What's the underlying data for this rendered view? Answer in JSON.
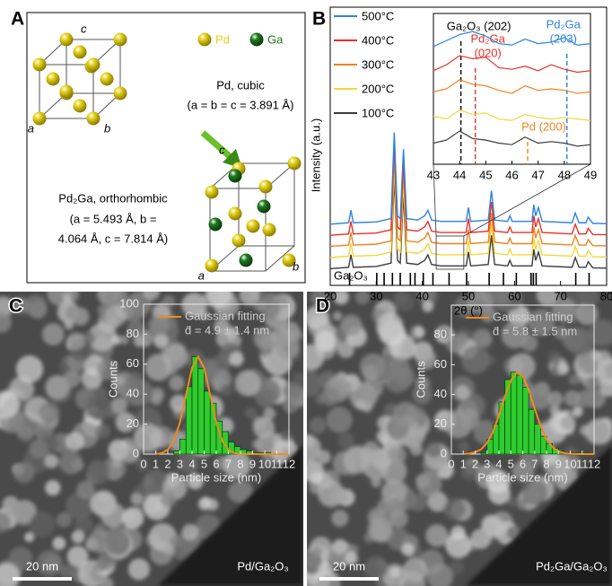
{
  "panel_labels": [
    "A",
    "B",
    "C",
    "D"
  ],
  "structures": {
    "legend": [
      {
        "name": "Pd",
        "color": "#e6d21a"
      },
      {
        "name": "Ga",
        "color": "#1f7a1f"
      }
    ],
    "pd": {
      "axes": [
        "c",
        "a",
        "b"
      ],
      "name": "Pd, cubic",
      "lattice": [
        "(a = b = c = 3.891 Å)"
      ]
    },
    "pd2ga": {
      "axes": [
        "c",
        "a",
        "b"
      ],
      "name": "Pd₂Ga, orthorhombic",
      "lattice": [
        "(a = 5.493 Å, b =",
        "4.064 Å, c = 7.814 Å)"
      ]
    }
  },
  "chart_data": [
    {
      "type": "line",
      "x_label": "2θ (°)",
      "y_label": "Intensity (a.u.)",
      "xlim": [
        20,
        80
      ],
      "xticks": [
        20,
        30,
        40,
        50,
        60,
        70,
        80
      ],
      "ylim": [
        0,
        100
      ],
      "x": [
        20,
        24,
        24.5,
        25,
        30,
        33.2,
        33.9,
        34.6,
        35.2,
        35.9,
        36.6,
        39,
        40.5,
        41.2,
        42,
        44,
        46,
        49.5,
        50,
        50.5,
        54.3,
        55,
        55.7,
        58.5,
        59,
        59.5,
        63.8,
        64.2,
        64.6,
        65.2,
        66,
        72.5,
        73.2,
        74,
        75.5,
        76,
        77,
        80
      ],
      "series": [
        {
          "name": "500°C",
          "color": "#2b83e0",
          "values": [
            22,
            22.5,
            27,
            22.5,
            22.8,
            24,
            55,
            25,
            24,
            49,
            24,
            23.5,
            25,
            27,
            23.5,
            23,
            23,
            23,
            28,
            23,
            23.5,
            34,
            23.5,
            23,
            25,
            23,
            23,
            29,
            25,
            28,
            23,
            22.5,
            26,
            22.5,
            22.5,
            24.5,
            22.3,
            22.2
          ]
        },
        {
          "name": "400°C",
          "color": "#e8302a",
          "values": [
            18,
            18.5,
            23,
            18.5,
            18.8,
            20,
            51,
            21,
            20,
            45,
            20,
            19.5,
            21,
            23,
            19.5,
            19,
            19,
            19,
            24,
            19,
            19.5,
            30,
            19.5,
            19,
            21,
            19,
            19,
            25,
            21,
            24,
            19,
            18.5,
            22,
            18.5,
            18.5,
            20.5,
            18.3,
            18.2
          ]
        },
        {
          "name": "300°C",
          "color": "#f0821e",
          "values": [
            14,
            14.5,
            19,
            14.5,
            14.8,
            16,
            47,
            17,
            16,
            41,
            16,
            15.5,
            17,
            19,
            15.5,
            15,
            15,
            15,
            20,
            15,
            15.5,
            26,
            15.5,
            15,
            17,
            15,
            15,
            21,
            17,
            20,
            15,
            14.5,
            18,
            14.5,
            14.5,
            16.5,
            14.3,
            14.2
          ]
        },
        {
          "name": "200°C",
          "color": "#f2d83a",
          "values": [
            10,
            10.5,
            15,
            10.5,
            10.8,
            12,
            43,
            13,
            12,
            37,
            12,
            11.5,
            13,
            15,
            11.5,
            11,
            11,
            11,
            16,
            11,
            11.5,
            22,
            11.5,
            11,
            13,
            11,
            11,
            17,
            13,
            16,
            11,
            10.5,
            14,
            10.5,
            10.5,
            12.5,
            10.3,
            10.2
          ]
        },
        {
          "name": "100°C",
          "color": "#3c3c3c",
          "values": [
            6,
            6.5,
            11,
            6.5,
            6.8,
            8,
            39,
            9,
            8,
            33,
            8,
            7.5,
            9,
            11,
            7.5,
            7,
            7,
            7,
            12,
            7,
            7.5,
            18,
            7.5,
            7,
            9,
            7,
            7,
            13,
            9,
            12,
            7,
            6.5,
            10,
            6.5,
            6.5,
            8.5,
            6.3,
            6.2
          ]
        }
      ],
      "reference": {
        "name": "Ga₂O₃",
        "positions": [
          24.2,
          30.1,
          31.7,
          33.5,
          35.2,
          37.4,
          38.4,
          40.2,
          42.3,
          45.8,
          49.6,
          54.5,
          57.6,
          60.4,
          63.6,
          64.1,
          64.7,
          73.3,
          76.2
        ]
      },
      "inset": {
        "xlim": [
          43,
          49
        ],
        "xticks": [
          43,
          44,
          45,
          46,
          47,
          48,
          49
        ],
        "ylim": [
          0,
          100
        ],
        "x": [
          43,
          43.5,
          44,
          44.5,
          45,
          45.5,
          46,
          46.5,
          47,
          47.5,
          48,
          48.5,
          49
        ],
        "values": [
          [
            78,
            82,
            86,
            88,
            85,
            80,
            79,
            83,
            80,
            81,
            84,
            79,
            80
          ],
          [
            62,
            66,
            72,
            70,
            71,
            64,
            63,
            65,
            62,
            66,
            63,
            61,
            62
          ],
          [
            48,
            50,
            56,
            53,
            52,
            49,
            47,
            52,
            49,
            50,
            49,
            47,
            48
          ],
          [
            32,
            30,
            36,
            33,
            34,
            30,
            29,
            33,
            31,
            30,
            31,
            30,
            29
          ],
          [
            14,
            16,
            22,
            17,
            16,
            14,
            13,
            18,
            14,
            15,
            14,
            12,
            13
          ]
        ],
        "annotations": [
          {
            "text": [
              "Ga₂O₃ (202)"
            ],
            "x": 44.05,
            "color": "#000000"
          },
          {
            "text": [
              "Pd₂Ga",
              "(020)"
            ],
            "x": 44.6,
            "color": "#e8302a"
          },
          {
            "text": [
              "Pd₂Ga",
              "(203)"
            ],
            "x": 48.1,
            "color": "#2b83e0"
          },
          {
            "text": [
              "Pd (200)"
            ],
            "x": 46.6,
            "color": "#f0821e"
          }
        ]
      }
    },
    {
      "type": "histogram",
      "x_label": "Particle size (nm)",
      "y_label": "Counts",
      "xlim": [
        0,
        12
      ],
      "xticks": [
        0,
        1,
        2,
        3,
        4,
        5,
        6,
        7,
        8,
        9,
        10,
        11,
        12
      ],
      "ylim": [
        0,
        100
      ],
      "yticks": [
        0,
        20,
        40,
        60,
        80,
        100
      ],
      "bins": [
        2.5,
        3,
        3.5,
        4,
        4.5,
        5,
        5.5,
        6,
        6.5,
        7,
        7.5,
        8,
        8.5,
        9,
        9.5,
        10,
        10.5
      ],
      "values": [
        2,
        10,
        45,
        65,
        57,
        42,
        34,
        22,
        15,
        8,
        5,
        3,
        2,
        1,
        1,
        1
      ],
      "color": "#2ecc2e",
      "fit": {
        "name": "Gaussian fitting",
        "color": "#f08a1c",
        "x": [
          1,
          1.5,
          2,
          2.5,
          3,
          3.5,
          4,
          4.5,
          5,
          5.5,
          6,
          6.5,
          7,
          7.5,
          8,
          8.5,
          9,
          9.5,
          10,
          10.5,
          11,
          11.5,
          12
        ],
        "values": [
          0.1,
          0.7,
          2.9,
          8.8,
          21.1,
          39.4,
          57.4,
          65,
          57.4,
          39.4,
          21.1,
          8.8,
          2.9,
          0.7,
          0.1,
          0,
          0,
          0,
          0,
          0,
          0,
          0,
          0
        ]
      },
      "stat": "d̄ = 4.9 ± 1.4 nm"
    },
    {
      "type": "histogram",
      "x_label": "Particle size (nm)",
      "y_label": "Counts",
      "xlim": [
        0,
        12
      ],
      "xticks": [
        0,
        1,
        2,
        3,
        4,
        5,
        6,
        7,
        8,
        9,
        10,
        11,
        12
      ],
      "ylim": [
        0,
        100
      ],
      "yticks": [
        0,
        20,
        40,
        60,
        80
      ],
      "bins": [
        2.5,
        3,
        3.5,
        4,
        4.5,
        5,
        5.5,
        6,
        6.5,
        7,
        7.5,
        8,
        8.5,
        9,
        9.5,
        10,
        10.5,
        11,
        11.5
      ],
      "values": [
        1,
        10,
        20,
        35,
        50,
        55,
        53,
        45,
        30,
        20,
        12,
        7,
        4,
        2,
        1,
        1,
        1,
        1
      ],
      "color": "#2ecc2e",
      "fit": {
        "name": "Gaussian fitting",
        "color": "#f08a1c",
        "x": [
          1,
          1.5,
          2,
          2.5,
          3,
          3.5,
          4,
          4.5,
          5,
          5.5,
          6,
          6.5,
          7,
          7.5,
          8,
          8.5,
          9,
          9.5,
          10,
          10.5,
          11,
          11.5,
          12
        ],
        "values": [
          0.1,
          0.4,
          1.2,
          3.2,
          7.4,
          14.9,
          25.8,
          38.5,
          49.4,
          54.8,
          52.4,
          43.3,
          30.7,
          18.9,
          10,
          4.6,
          1.8,
          0.6,
          0.2,
          0.1,
          0,
          0,
          0
        ]
      },
      "stat": "d̄ = 5.8 ± 1.5 nm"
    }
  ],
  "images": [
    {
      "scale_bar": "20 nm",
      "sample": "Pd/Ga₂O₃"
    },
    {
      "scale_bar": "20 nm",
      "sample": "Pd₂Ga/Ga₂O₃"
    }
  ]
}
